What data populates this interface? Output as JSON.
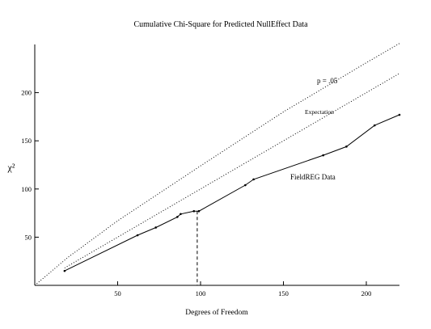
{
  "chart_data": {
    "type": "line",
    "title": "Cumulative Chi-Square  for Predicted NullEffect Data",
    "xlabel": "Degrees  of  Freedom",
    "ylabel": "χ²",
    "xlim": [
      0,
      220
    ],
    "ylim": [
      0,
      250
    ],
    "x_ticks": [
      50,
      100,
      150,
      200
    ],
    "y_ticks": [
      50,
      100,
      150,
      200
    ],
    "grid": false,
    "series": [
      {
        "name": "FieldREG Data",
        "style": "solid",
        "points": [
          [
            18,
            15
          ],
          [
            62,
            52
          ],
          [
            73,
            60
          ],
          [
            86,
            71
          ],
          [
            88,
            74
          ],
          [
            96,
            77
          ],
          [
            99,
            77
          ],
          [
            127,
            104
          ],
          [
            132,
            110
          ],
          [
            174,
            135
          ],
          [
            188,
            144
          ],
          [
            205,
            166
          ],
          [
            220,
            177
          ]
        ]
      },
      {
        "name": "Expectation",
        "style": "dotted",
        "points": [
          [
            18,
            18
          ],
          [
            220,
            220
          ]
        ]
      },
      {
        "name": "p = .05",
        "style": "dotted",
        "points": [
          [
            0,
            0
          ],
          [
            20,
            29
          ],
          [
            50,
            67
          ],
          [
            100,
            124
          ],
          [
            150,
            180
          ],
          [
            200,
            231
          ],
          [
            220,
            251
          ]
        ]
      }
    ],
    "reference_line": {
      "x": 98,
      "y_to": 77,
      "style": "dashed"
    },
    "annotations": {
      "p05": "p = .05",
      "expectation": "Expectation",
      "data": "FieldREG Data"
    }
  }
}
